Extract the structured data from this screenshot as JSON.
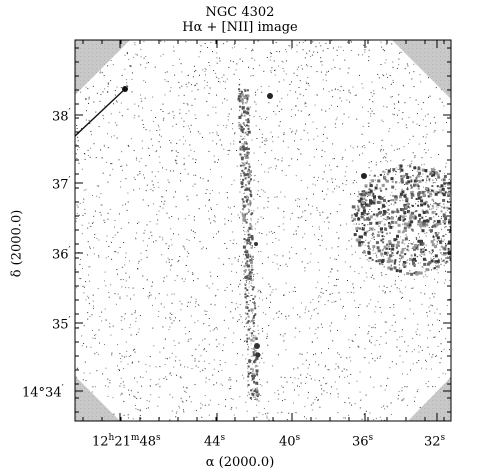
{
  "figure": {
    "title_line1": "NGC 4302",
    "title_line2": "Hα + [NII] image",
    "x_axis_title": "α (2000.0)",
    "y_axis_title": "δ (2000.0)",
    "y_ticks": [
      {
        "main": "38",
        "sup": "′"
      },
      {
        "main": "37",
        "sup": "′"
      },
      {
        "main": "36",
        "sup": "′"
      },
      {
        "main": "35",
        "sup": "′"
      },
      {
        "main": "14°34",
        "sup": "′"
      }
    ],
    "x_ticks": [
      {
        "parts": [
          "12",
          "h",
          "21",
          "m",
          "48",
          "s"
        ]
      },
      {
        "parts": [
          "44",
          "s"
        ]
      },
      {
        "parts": [
          "40",
          "s"
        ]
      },
      {
        "parts": [
          "36",
          "s"
        ]
      },
      {
        "parts": [
          "32",
          "s"
        ]
      }
    ]
  },
  "colors": {
    "frame": "#000000",
    "masked_corner": "#c8c8c8",
    "speckle": "#222222"
  }
}
